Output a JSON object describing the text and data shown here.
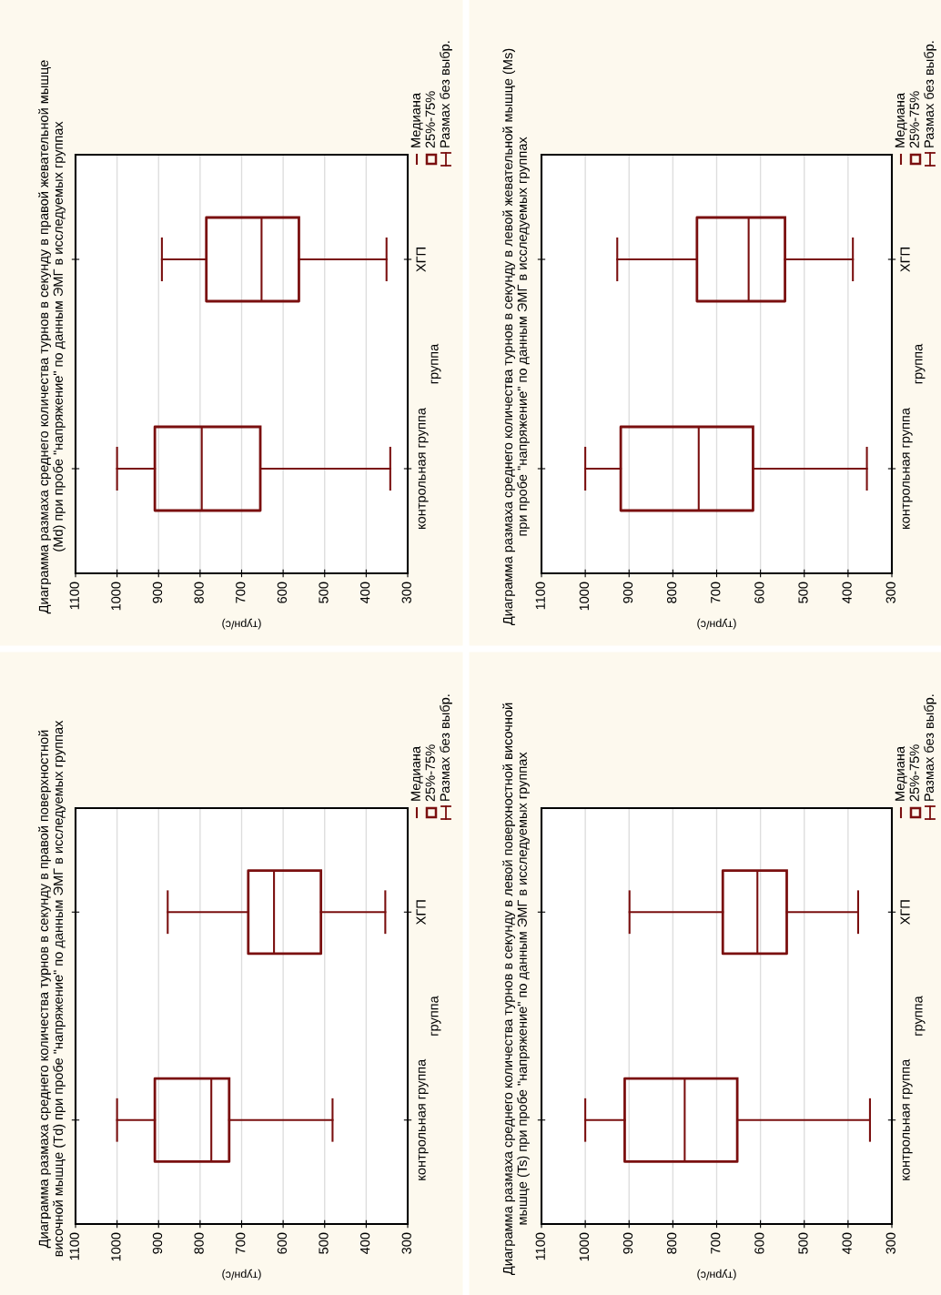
{
  "chart_data": [
    {
      "type": "box",
      "orientation": "horizontal",
      "title": "Диаграмма размаха среднего количества турнов в секунду в правой жевательной мышце\n(Md) при пробе \"напряжение\" по данным ЭМГ в исследуемых группах",
      "xlabel": "(турн/с)",
      "ylabel": "группа",
      "categories": [
        "ХГП",
        "контрольная группа"
      ],
      "xlim": [
        1100,
        300
      ],
      "xticks": [
        1100,
        1000,
        900,
        800,
        700,
        600,
        500,
        400,
        300
      ],
      "grid": "x",
      "annotations": [
        "Медиана",
        "25%-75%",
        "Размах без выбр."
      ],
      "series": [
        {
          "color": "#7a0f0f",
          "boxes": [
            {
              "low": 351,
              "q1": 562,
              "median": 652,
              "q3": 785,
              "high": 892
            },
            {
              "low": 342,
              "q1": 655,
              "median": 796,
              "q3": 909,
              "high": 1000
            }
          ]
        }
      ]
    },
    {
      "type": "box",
      "orientation": "horizontal",
      "title": "Диаграмма размаха среднего количества турнов в секунду в левой жевательной мышце (Ms)\nпри пробе \"напряжение\" по данным ЭМГ в исследуемых группах",
      "xlabel": "(турн/с)",
      "ylabel": "группа",
      "categories": [
        "ХГП",
        "контрольная группа"
      ],
      "xlim": [
        1100,
        300
      ],
      "xticks": [
        1100,
        1000,
        900,
        800,
        700,
        600,
        500,
        400,
        300
      ],
      "grid": "x",
      "annotations": [
        "Медиана",
        "25%-75%",
        "Размах без выбр."
      ],
      "series": [
        {
          "color": "#7a0f0f",
          "boxes": [
            {
              "low": 389,
              "q1": 544,
              "median": 627,
              "q3": 745,
              "high": 927
            },
            {
              "low": 357,
              "q1": 617,
              "median": 741,
              "q3": 919,
              "high": 1000
            }
          ]
        }
      ]
    },
    {
      "type": "box",
      "orientation": "horizontal",
      "title": "Диаграмма размаха среднего количества турнов в секунду в правой поверхностной\nвисочной мышце (Td) при пробе \"напряжение\" по данным ЭМГ в исследуемых группах",
      "xlabel": "(турн/с)",
      "ylabel": "группа",
      "categories": [
        "ХГП",
        "контрольная группа"
      ],
      "xlim": [
        1100,
        300
      ],
      "xticks": [
        1100,
        1000,
        900,
        800,
        700,
        600,
        500,
        400,
        300
      ],
      "grid": "x",
      "annotations": [
        "Медиана",
        "25%-75%",
        "Размах без выбр."
      ],
      "series": [
        {
          "color": "#7a0f0f",
          "boxes": [
            {
              "low": 354,
              "q1": 509,
              "median": 622,
              "q3": 684,
              "high": 878
            },
            {
              "low": 481,
              "q1": 730,
              "median": 773,
              "q3": 909,
              "high": 1000
            }
          ]
        }
      ]
    },
    {
      "type": "box",
      "orientation": "horizontal",
      "title": "Диаграмма размаха среднего количества турнов в секунду в левой поверхностной височной\nмышце (Ts) при пробе \"напряжение\" по данным ЭМГ в исследуемых группах",
      "xlabel": "(турн/с)",
      "ylabel": "группа",
      "categories": [
        "ХГП",
        "контрольная группа"
      ],
      "xlim": [
        1100,
        300
      ],
      "xticks": [
        1100,
        1000,
        900,
        800,
        700,
        600,
        500,
        400,
        300
      ],
      "grid": "x",
      "annotations": [
        "Медиана",
        "25%-75%",
        "Размах без выбр."
      ],
      "series": [
        {
          "color": "#7a0f0f",
          "boxes": [
            {
              "low": 377,
              "q1": 540,
              "median": 607,
              "q3": 686,
              "high": 899
            },
            {
              "low": 350,
              "q1": 653,
              "median": 773,
              "q3": 910,
              "high": 1000
            }
          ]
        }
      ]
    }
  ]
}
